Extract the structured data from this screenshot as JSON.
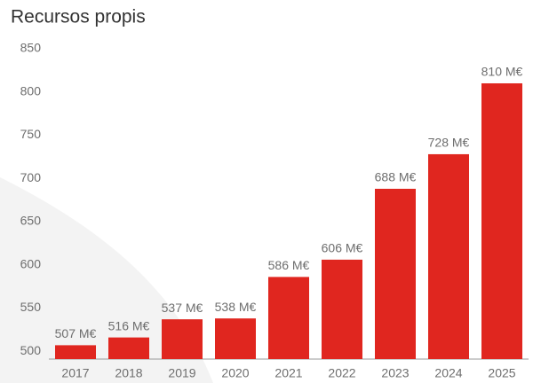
{
  "chart_data": {
    "type": "bar",
    "title": "Recursos propis",
    "categories": [
      "2017",
      "2018",
      "2019",
      "2020",
      "2021",
      "2022",
      "2023",
      "2024",
      "2025"
    ],
    "values": [
      507,
      516,
      537,
      538,
      586,
      606,
      688,
      728,
      810
    ],
    "value_labels": [
      "507 M€",
      "516 M€",
      "537 M€",
      "538 M€",
      "586 M€",
      "606 M€",
      "688 M€",
      "728 M€",
      "810 M€"
    ],
    "color": "#e0261f",
    "ylim": [
      491,
      850
    ],
    "yticks": [
      500,
      550,
      600,
      650,
      700,
      750,
      800,
      850
    ],
    "grid": false
  }
}
